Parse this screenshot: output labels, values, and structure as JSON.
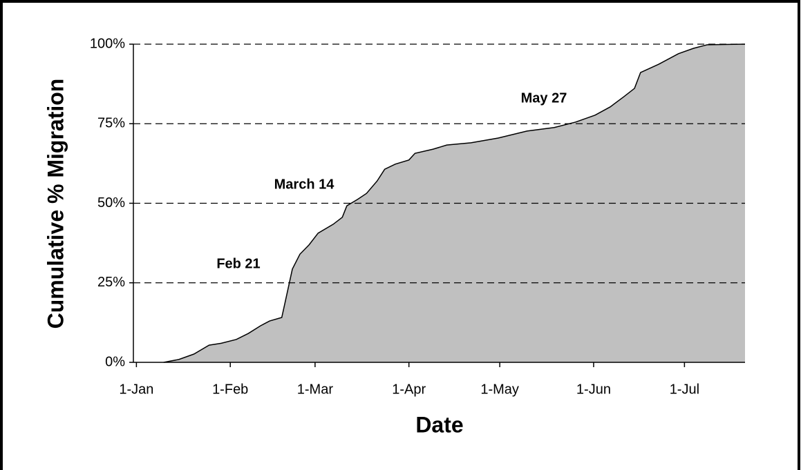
{
  "chart_data": {
    "type": "area",
    "xlabel": "Date",
    "ylabel": "Cumulative % Migration",
    "x": [
      10,
      15,
      20,
      25,
      29,
      34,
      38,
      42,
      45,
      49,
      50,
      52.5,
      55,
      58,
      61,
      66,
      69,
      70.5,
      74,
      77,
      80.5,
      83,
      86.5,
      91,
      93,
      99,
      103.5,
      111.5,
      120.5,
      130,
      139,
      146,
      152.5,
      157.5,
      162,
      165.5,
      167.5,
      173.5,
      180,
      185,
      189.5,
      202
    ],
    "values": [
      0,
      0.9,
      2.6,
      5.4,
      6,
      7.2,
      9.1,
      11.5,
      13,
      14.1,
      18.4,
      29.3,
      34,
      36.9,
      40.6,
      43.4,
      45.6,
      49.2,
      51.2,
      53.1,
      57,
      60.7,
      62.3,
      63.6,
      65.7,
      67,
      68.3,
      69,
      70.5,
      72.7,
      73.8,
      75.5,
      77.7,
      80.3,
      83.5,
      86.1,
      91.1,
      93.7,
      97,
      98.7,
      99.8,
      100
    ],
    "color": "#c0c0c0",
    "xlim": [
      0,
      202
    ],
    "xticks": [
      {
        "value": 1,
        "label": "1-Jan"
      },
      {
        "value": 32,
        "label": "1-Feb"
      },
      {
        "value": 60,
        "label": "1-Mar"
      },
      {
        "value": 91,
        "label": "1-Apr"
      },
      {
        "value": 121,
        "label": "1-May"
      },
      {
        "value": 152,
        "label": "1-Jun"
      },
      {
        "value": 182,
        "label": "1-Jul"
      }
    ],
    "ylim": [
      0,
      100
    ],
    "yticks": [
      {
        "value": 0,
        "label": "0%"
      },
      {
        "value": 25,
        "label": "25%"
      },
      {
        "value": 50,
        "label": "50%"
      },
      {
        "value": 75,
        "label": "75%"
      },
      {
        "value": 100,
        "label": "100%"
      }
    ],
    "grid": true,
    "annotations": [
      "Feb 21",
      "March 14",
      "May 27"
    ]
  }
}
